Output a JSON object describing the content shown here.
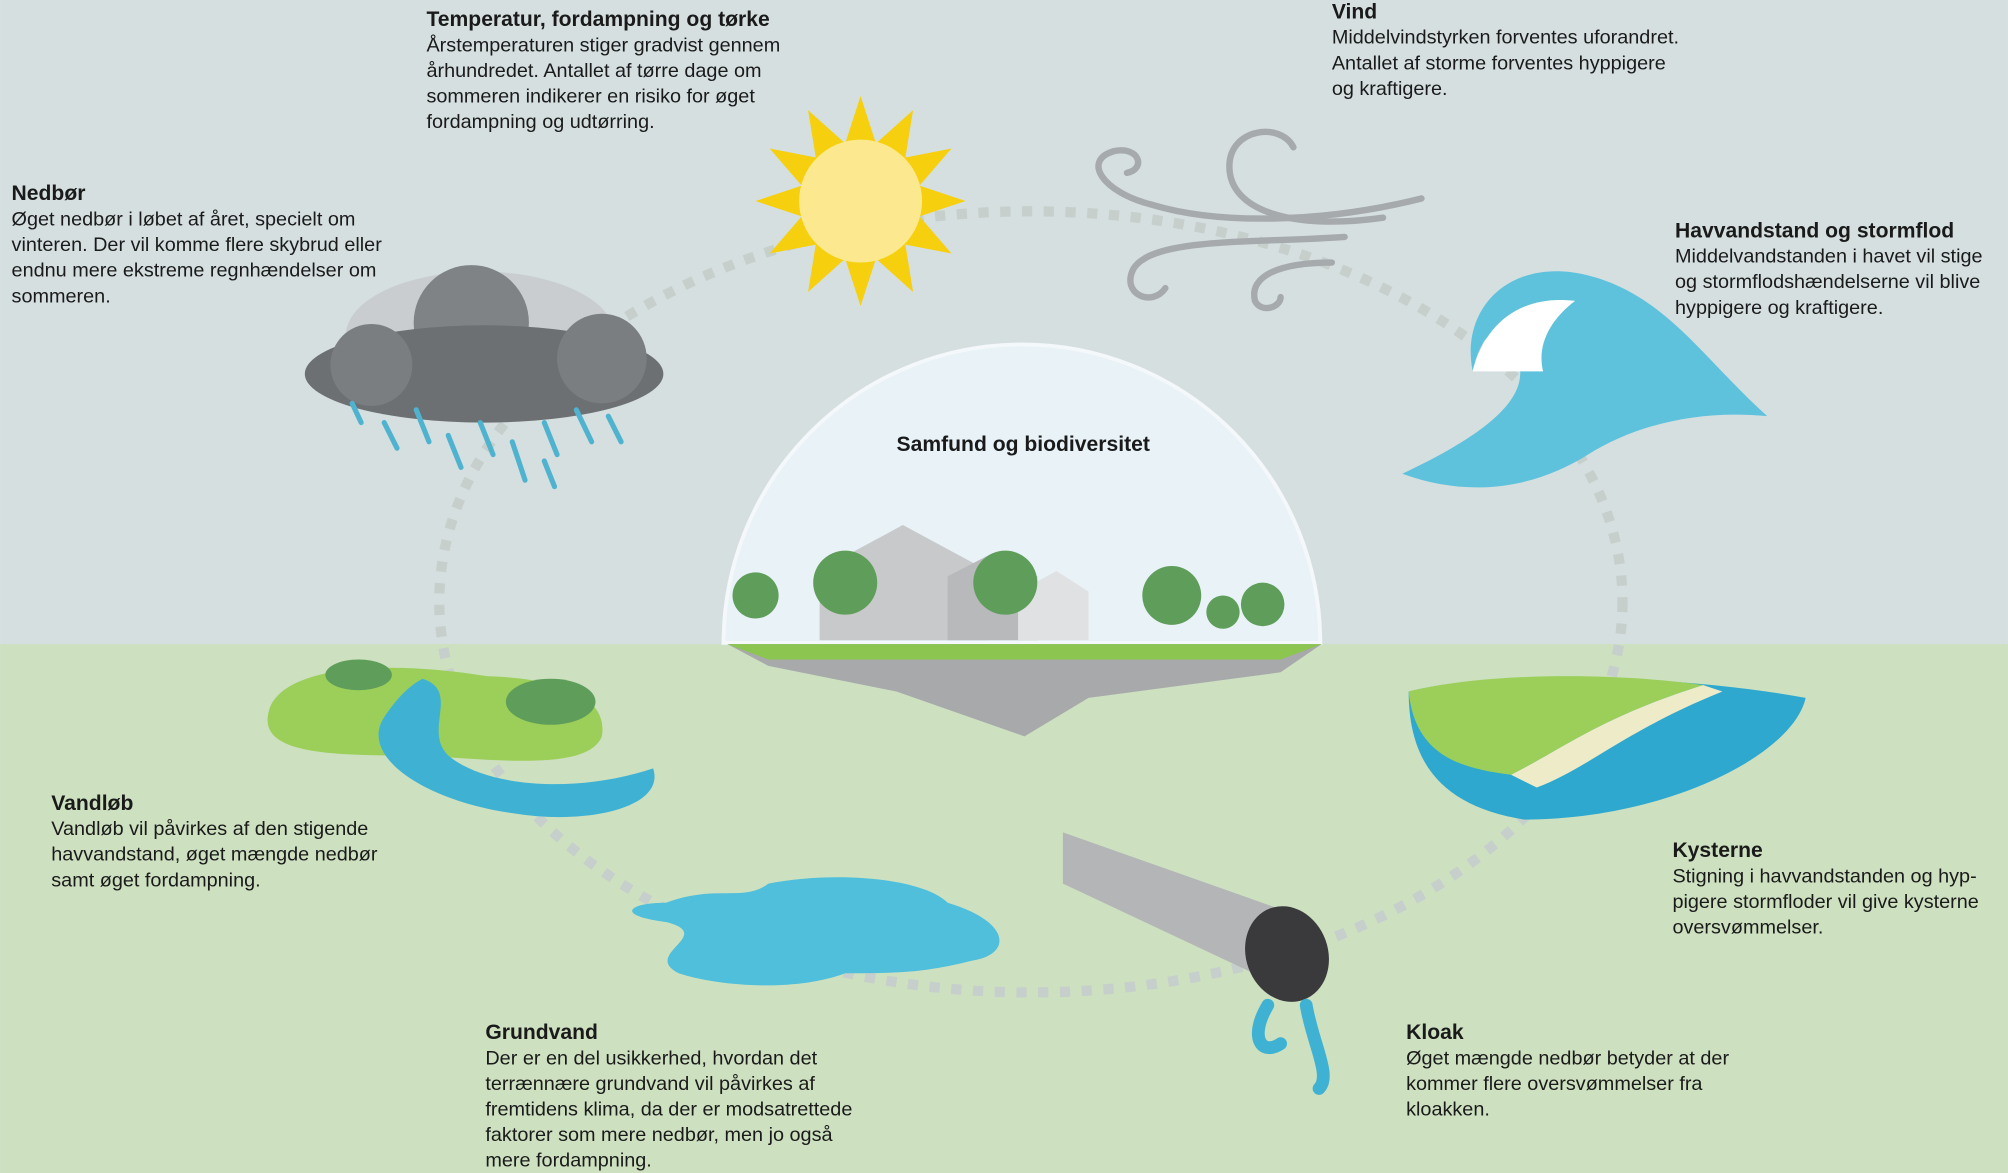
{
  "center": {
    "title": "Samfund og biodiversitet"
  },
  "sections": [
    {
      "title": "Temperatur, fordampning og tørke",
      "lines": [
        "Årstemperaturen stiger gradvist gennem",
        "århundredet. Antallet af tørre dage om",
        "sommeren indikerer en risiko for øget",
        "fordampning og udtørring."
      ]
    },
    {
      "title": "Vind",
      "lines": [
        "Middelvindstyrken forventes uforandret.",
        "Antallet af storme forventes hyppigere",
        "og kraftigere."
      ]
    },
    {
      "title": "Nedbør",
      "lines": [
        "Øget nedbør i løbet af året, specielt om",
        "vinteren. Der vil komme flere skybrud eller",
        "endnu mere ekstreme regnhændelser om",
        "sommeren."
      ]
    },
    {
      "title": "Havvandstand og stormflod",
      "lines": [
        "Middelvandstanden i havet vil stige",
        "og stormflodshændelserne vil blive",
        "hyppigere og kraftigere."
      ]
    },
    {
      "title": "Vandløb",
      "lines": [
        "Vandløb vil påvirkes af den stigende",
        "havvandstand, øget mængde nedbør",
        "samt øget fordampning."
      ]
    },
    {
      "title": "Kysterne",
      "lines": [
        "Stigning i havvandstanden og hyp-",
        "pigere stormfloder vil give kysterne",
        "oversvømmelser."
      ]
    },
    {
      "title": "Grundvand",
      "lines": [
        "Der er en del usikkerhed, hvordan det",
        "terrænnære grundvand vil påvirkes af",
        "fremtidens klima, da der er modsatrettede",
        "faktorer som mere nedbør, men jo også",
        "mere fordampning."
      ]
    },
    {
      "title": "Kloak",
      "lines": [
        "Øget mængde nedbør betyder at der",
        "kommer flere oversvømmelser fra",
        "kloakken."
      ]
    }
  ]
}
